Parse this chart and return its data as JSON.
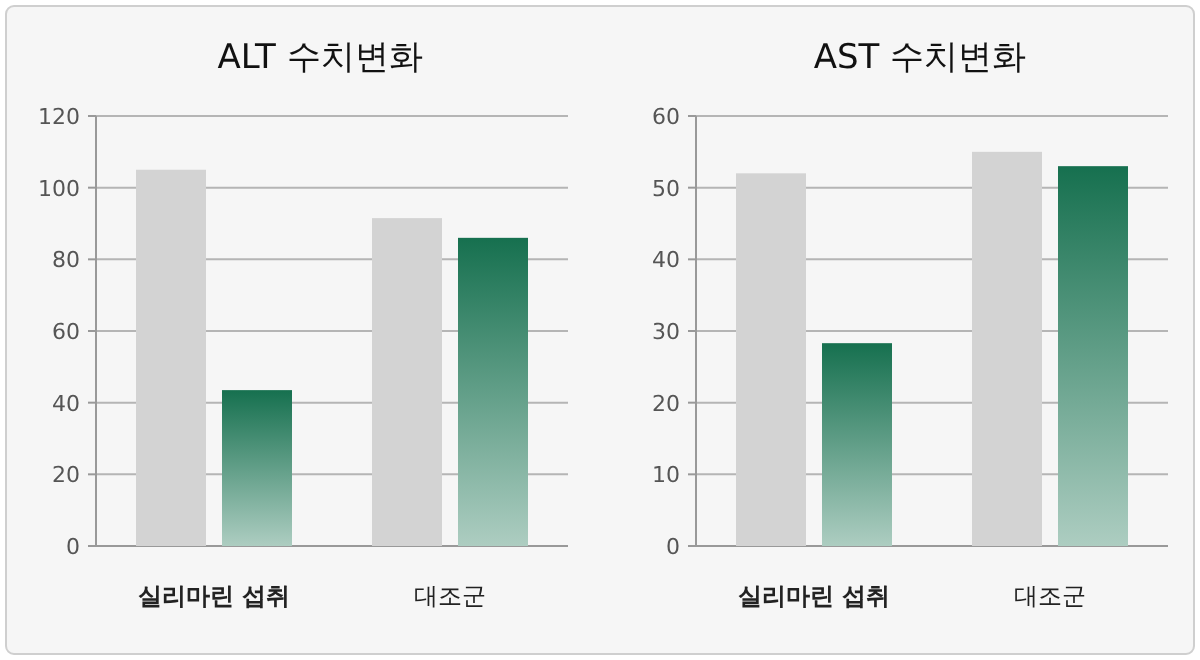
{
  "chart_data": [
    {
      "type": "bar",
      "title": "ALT 수치변화",
      "categories": [
        "실리마린 섭취",
        "대조군"
      ],
      "series": [
        {
          "color": "#d3d3d3",
          "values": [
            105,
            91.5
          ]
        },
        {
          "color": "#16704f",
          "values": [
            43.5,
            86
          ]
        }
      ],
      "ylim": [
        0,
        120
      ],
      "yticks": [
        0,
        20,
        40,
        60,
        80,
        100,
        120
      ],
      "grid": "y"
    },
    {
      "type": "bar",
      "title": "AST 수치변화",
      "categories": [
        "실리마린 섭취",
        "대조군"
      ],
      "series": [
        {
          "color": "#d3d3d3",
          "values": [
            52,
            55
          ]
        },
        {
          "color": "#16704f",
          "values": [
            28.3,
            53
          ]
        }
      ],
      "ylim": [
        0,
        60
      ],
      "yticks": [
        0,
        10,
        20,
        30,
        40,
        50,
        60
      ],
      "grid": "y"
    }
  ]
}
